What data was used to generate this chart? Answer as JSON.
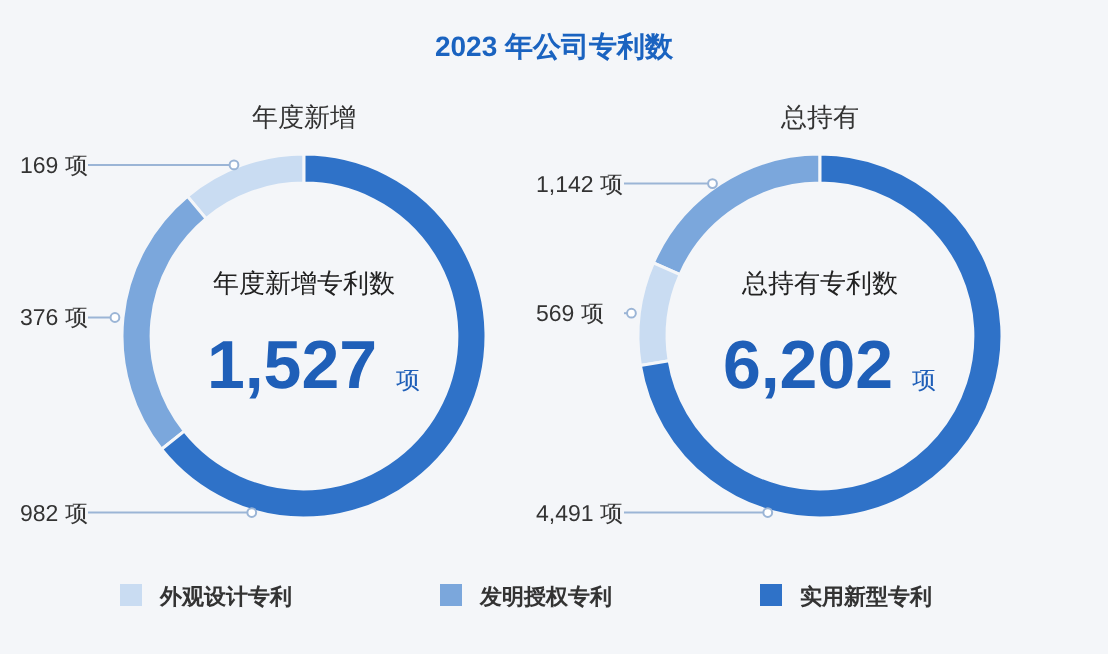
{
  "chart_data": [
    {
      "type": "donut",
      "title": "2023 年公司专利数",
      "subtitle": "年度新增",
      "categories": [
        "外观设计专利",
        "发明授权专利",
        "实用新型专利"
      ],
      "values": [
        169,
        376,
        982
      ],
      "colors": [
        "#c9dcf2",
        "#7ba7dc",
        "#2f72c8"
      ],
      "value_labels": [
        "169 项",
        "376 项",
        "982 项"
      ],
      "annotations": [
        "年度新增专利数",
        "1,527",
        "项"
      ],
      "legend": "bottom"
    },
    {
      "type": "donut",
      "subtitle": "总持有",
      "categories": [
        null,
        null,
        null
      ],
      "values": [
        1142,
        569,
        4491
      ],
      "colors": [
        "#7ba7dc",
        "#c9dcf2",
        "#2f72c8"
      ],
      "value_labels": [
        "1,142 项",
        "569 项",
        "4,491 项"
      ],
      "annotations": [
        "总持有专利数",
        "6,202",
        "项"
      ]
    }
  ]
}
